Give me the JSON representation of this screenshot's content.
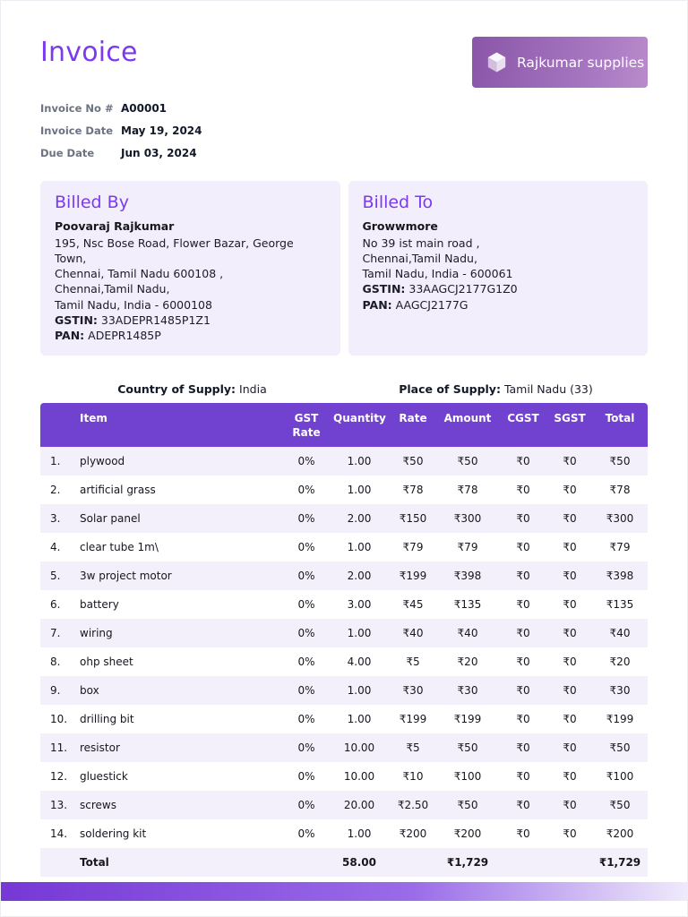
{
  "colors": {
    "primary_purple": "#7C3AED",
    "table_header_bg": "#7141CF",
    "panel_bg": "#F2EEFB",
    "row_alt_bg": "#F4F0FB",
    "logo_gradient_start": "#8A56A8",
    "logo_gradient_end": "#B98BCB",
    "footer_gradient_start": "#7638D6",
    "footer_gradient_end": "#EFEAFB"
  },
  "header": {
    "title": "Invoice",
    "logo_text": "Rajkumar supplies",
    "logo_icon": "cube-icon"
  },
  "meta": {
    "rows": [
      {
        "label": "Invoice No #",
        "value": "A00001"
      },
      {
        "label": "Invoice Date",
        "value": "May 19, 2024"
      },
      {
        "label": "Due Date",
        "value": "Jun 03, 2024"
      }
    ]
  },
  "billed_by": {
    "title": "Billed By",
    "name": "Poovaraj Rajkumar",
    "address_lines": [
      "195, Nsc Bose Road, Flower Bazar, George Town,",
      "Chennai, Tamil Nadu 600108 ,",
      "Chennai,Tamil Nadu,",
      "Tamil Nadu, India - 6000108"
    ],
    "gstin_label": "GSTIN:",
    "gstin": "33ADEPR1485P1Z1",
    "pan_label": "PAN:",
    "pan": "ADEPR1485P"
  },
  "billed_to": {
    "title": "Billed To",
    "name": "Growwmore",
    "address_lines": [
      "No 39 ist main road ,",
      "Chennai,Tamil Nadu,",
      "Tamil Nadu, India - 600061"
    ],
    "gstin_label": "GSTIN:",
    "gstin": "33AAGCJ2177G1Z0",
    "pan_label": "PAN:",
    "pan": "AAGCJ2177G"
  },
  "supply": {
    "country_label": "Country of Supply:",
    "country_value": "India",
    "place_label": "Place of Supply:",
    "place_value": "Tamil Nadu (33)"
  },
  "table": {
    "headers": [
      "",
      "Item",
      "GST Rate",
      "Quantity",
      "Rate",
      "Amount",
      "CGST",
      "SGST",
      "Total"
    ],
    "rows": [
      {
        "sl": "1.",
        "item": "plywood",
        "gst_rate": "0%",
        "quantity": "1.00",
        "rate": "₹50",
        "amount": "₹50",
        "cgst": "₹0",
        "sgst": "₹0",
        "total": "₹50"
      },
      {
        "sl": "2.",
        "item": "artificial grass",
        "gst_rate": "0%",
        "quantity": "1.00",
        "rate": "₹78",
        "amount": "₹78",
        "cgst": "₹0",
        "sgst": "₹0",
        "total": "₹78"
      },
      {
        "sl": "3.",
        "item": "Solar panel",
        "gst_rate": "0%",
        "quantity": "2.00",
        "rate": "₹150",
        "amount": "₹300",
        "cgst": "₹0",
        "sgst": "₹0",
        "total": "₹300"
      },
      {
        "sl": "4.",
        "item": "clear tube 1m\\",
        "gst_rate": "0%",
        "quantity": "1.00",
        "rate": "₹79",
        "amount": "₹79",
        "cgst": "₹0",
        "sgst": "₹0",
        "total": "₹79"
      },
      {
        "sl": "5.",
        "item": "3w project motor",
        "gst_rate": "0%",
        "quantity": "2.00",
        "rate": "₹199",
        "amount": "₹398",
        "cgst": "₹0",
        "sgst": "₹0",
        "total": "₹398"
      },
      {
        "sl": "6.",
        "item": "battery",
        "gst_rate": "0%",
        "quantity": "3.00",
        "rate": "₹45",
        "amount": "₹135",
        "cgst": "₹0",
        "sgst": "₹0",
        "total": "₹135"
      },
      {
        "sl": "7.",
        "item": "wiring",
        "gst_rate": "0%",
        "quantity": "1.00",
        "rate": "₹40",
        "amount": "₹40",
        "cgst": "₹0",
        "sgst": "₹0",
        "total": "₹40"
      },
      {
        "sl": "8.",
        "item": "ohp sheet",
        "gst_rate": "0%",
        "quantity": "4.00",
        "rate": "₹5",
        "amount": "₹20",
        "cgst": "₹0",
        "sgst": "₹0",
        "total": "₹20"
      },
      {
        "sl": "9.",
        "item": "box",
        "gst_rate": "0%",
        "quantity": "1.00",
        "rate": "₹30",
        "amount": "₹30",
        "cgst": "₹0",
        "sgst": "₹0",
        "total": "₹30"
      },
      {
        "sl": "10.",
        "item": "drilling bit",
        "gst_rate": "0%",
        "quantity": "1.00",
        "rate": "₹199",
        "amount": "₹199",
        "cgst": "₹0",
        "sgst": "₹0",
        "total": "₹199"
      },
      {
        "sl": "11.",
        "item": "resistor",
        "gst_rate": "0%",
        "quantity": "10.00",
        "rate": "₹5",
        "amount": "₹50",
        "cgst": "₹0",
        "sgst": "₹0",
        "total": "₹50"
      },
      {
        "sl": "12.",
        "item": "gluestick",
        "gst_rate": "0%",
        "quantity": "10.00",
        "rate": "₹10",
        "amount": "₹100",
        "cgst": "₹0",
        "sgst": "₹0",
        "total": "₹100"
      },
      {
        "sl": "13.",
        "item": "screws",
        "gst_rate": "0%",
        "quantity": "20.00",
        "rate": "₹2.50",
        "amount": "₹50",
        "cgst": "₹0",
        "sgst": "₹0",
        "total": "₹50"
      },
      {
        "sl": "14.",
        "item": "soldering kit",
        "gst_rate": "0%",
        "quantity": "1.00",
        "rate": "₹200",
        "amount": "₹200",
        "cgst": "₹0",
        "sgst": "₹0",
        "total": "₹200"
      }
    ],
    "total": {
      "label": "Total",
      "quantity": "58.00",
      "amount": "₹1,729",
      "total": "₹1,729"
    }
  }
}
